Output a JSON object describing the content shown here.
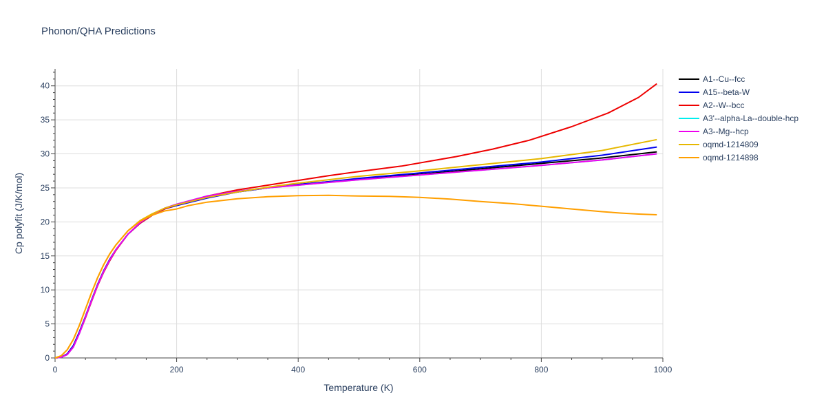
{
  "chart_data": {
    "type": "line",
    "title": "Phonon/QHA Predictions",
    "xlabel": "Temperature (K)",
    "ylabel": "Cp polyfit (J/K/mol)",
    "xlim": [
      0,
      1000
    ],
    "ylim": [
      0,
      42.5
    ],
    "xticks": [
      0,
      200,
      400,
      600,
      800,
      1000
    ],
    "yticks": [
      0,
      5,
      10,
      15,
      20,
      25,
      30,
      35,
      40
    ],
    "grid": true,
    "legend_position": "top-right",
    "series": [
      {
        "name": "A1--Cu--fcc",
        "color": "#000000",
        "x": [
          0,
          10,
          20,
          30,
          40,
          50,
          60,
          70,
          80,
          90,
          100,
          120,
          140,
          160,
          180,
          200,
          250,
          300,
          350,
          400,
          450,
          500,
          600,
          700,
          800,
          900,
          990
        ],
        "y": [
          0,
          0.1,
          0.6,
          1.8,
          3.8,
          6.1,
          8.5,
          10.8,
          12.8,
          14.5,
          15.9,
          18.2,
          19.8,
          21.0,
          21.9,
          22.5,
          23.6,
          24.4,
          25.0,
          25.5,
          25.9,
          26.3,
          27.0,
          27.8,
          28.6,
          29.4,
          30.3
        ]
      },
      {
        "name": "A15--beta-W",
        "color": "#0000ee",
        "x": [
          0,
          10,
          20,
          30,
          40,
          50,
          60,
          70,
          80,
          90,
          100,
          120,
          140,
          160,
          180,
          200,
          250,
          300,
          350,
          400,
          450,
          500,
          600,
          700,
          800,
          900,
          990
        ],
        "y": [
          0,
          0.1,
          0.6,
          1.8,
          3.8,
          6.1,
          8.5,
          10.8,
          12.8,
          14.5,
          15.9,
          18.2,
          19.8,
          21.0,
          21.9,
          22.4,
          23.5,
          24.4,
          25.0,
          25.5,
          25.9,
          26.4,
          27.2,
          28.0,
          28.8,
          29.8,
          31.0
        ]
      },
      {
        "name": "A2--W--bcc",
        "color": "#ee0000",
        "x": [
          0,
          10,
          20,
          30,
          40,
          50,
          60,
          70,
          80,
          90,
          100,
          120,
          140,
          160,
          180,
          200,
          250,
          300,
          350,
          400,
          450,
          500,
          570,
          660,
          720,
          780,
          850,
          910,
          960,
          990
        ],
        "y": [
          0,
          0.1,
          0.5,
          1.6,
          3.6,
          5.9,
          8.3,
          10.6,
          12.6,
          14.3,
          15.8,
          18.2,
          19.8,
          21.0,
          21.9,
          22.5,
          23.8,
          24.7,
          25.4,
          26.1,
          26.8,
          27.4,
          28.2,
          29.6,
          30.7,
          32.0,
          34.0,
          36.0,
          38.3,
          40.3
        ]
      },
      {
        "name": "A3'--alpha-La--double-hcp",
        "color": "#00eeee",
        "x": [
          0,
          10,
          20,
          30,
          40,
          50,
          60,
          70,
          80,
          90,
          100,
          120,
          140,
          160,
          180,
          200,
          250,
          300,
          350,
          400,
          450,
          500,
          600,
          700,
          800,
          900,
          990
        ],
        "y": [
          0,
          0.1,
          0.5,
          1.6,
          3.6,
          6.0,
          8.4,
          10.7,
          12.7,
          14.4,
          15.9,
          18.2,
          19.9,
          21.1,
          22.0,
          22.6,
          23.8,
          24.5,
          25.0,
          25.4,
          25.8,
          26.2,
          26.9,
          27.6,
          28.3,
          29.1,
          30.0
        ]
      },
      {
        "name": "A3--Mg--hcp",
        "color": "#ee00ee",
        "x": [
          0,
          10,
          20,
          30,
          40,
          50,
          60,
          70,
          80,
          90,
          100,
          120,
          140,
          160,
          180,
          200,
          250,
          300,
          350,
          400,
          450,
          500,
          600,
          700,
          800,
          900,
          990
        ],
        "y": [
          0,
          0.1,
          0.5,
          1.6,
          3.6,
          6.0,
          8.4,
          10.7,
          12.7,
          14.4,
          15.9,
          18.2,
          19.9,
          21.1,
          22.0,
          22.6,
          23.8,
          24.5,
          25.0,
          25.4,
          25.8,
          26.2,
          26.9,
          27.6,
          28.3,
          29.1,
          30.0
        ]
      },
      {
        "name": "oqmd-1214809",
        "color": "#e6b800",
        "x": [
          0,
          10,
          20,
          30,
          40,
          50,
          60,
          70,
          80,
          90,
          100,
          120,
          140,
          160,
          180,
          200,
          250,
          300,
          350,
          400,
          450,
          500,
          600,
          700,
          800,
          900,
          990
        ],
        "y": [
          0,
          0.3,
          1.2,
          2.7,
          4.8,
          7.2,
          9.6,
          11.8,
          13.7,
          15.3,
          16.6,
          18.7,
          20.2,
          21.2,
          22.0,
          22.5,
          23.6,
          24.4,
          25.1,
          25.7,
          26.2,
          26.7,
          27.5,
          28.4,
          29.3,
          30.5,
          32.1
        ]
      },
      {
        "name": "oqmd-1214898",
        "color": "#ff9f00",
        "x": [
          0,
          10,
          20,
          30,
          40,
          50,
          60,
          70,
          80,
          90,
          100,
          120,
          140,
          160,
          180,
          200,
          220,
          250,
          300,
          350,
          400,
          450,
          500,
          550,
          600,
          650,
          700,
          750,
          800,
          850,
          900,
          930,
          960,
          990
        ],
        "y": [
          0,
          0.3,
          1.2,
          2.7,
          4.8,
          7.2,
          9.6,
          11.8,
          13.7,
          15.3,
          16.6,
          18.7,
          20.1,
          21.0,
          21.6,
          21.9,
          22.4,
          22.9,
          23.4,
          23.7,
          23.85,
          23.9,
          23.8,
          23.75,
          23.6,
          23.35,
          23.0,
          22.7,
          22.3,
          21.9,
          21.5,
          21.3,
          21.15,
          21.05
        ]
      }
    ]
  }
}
